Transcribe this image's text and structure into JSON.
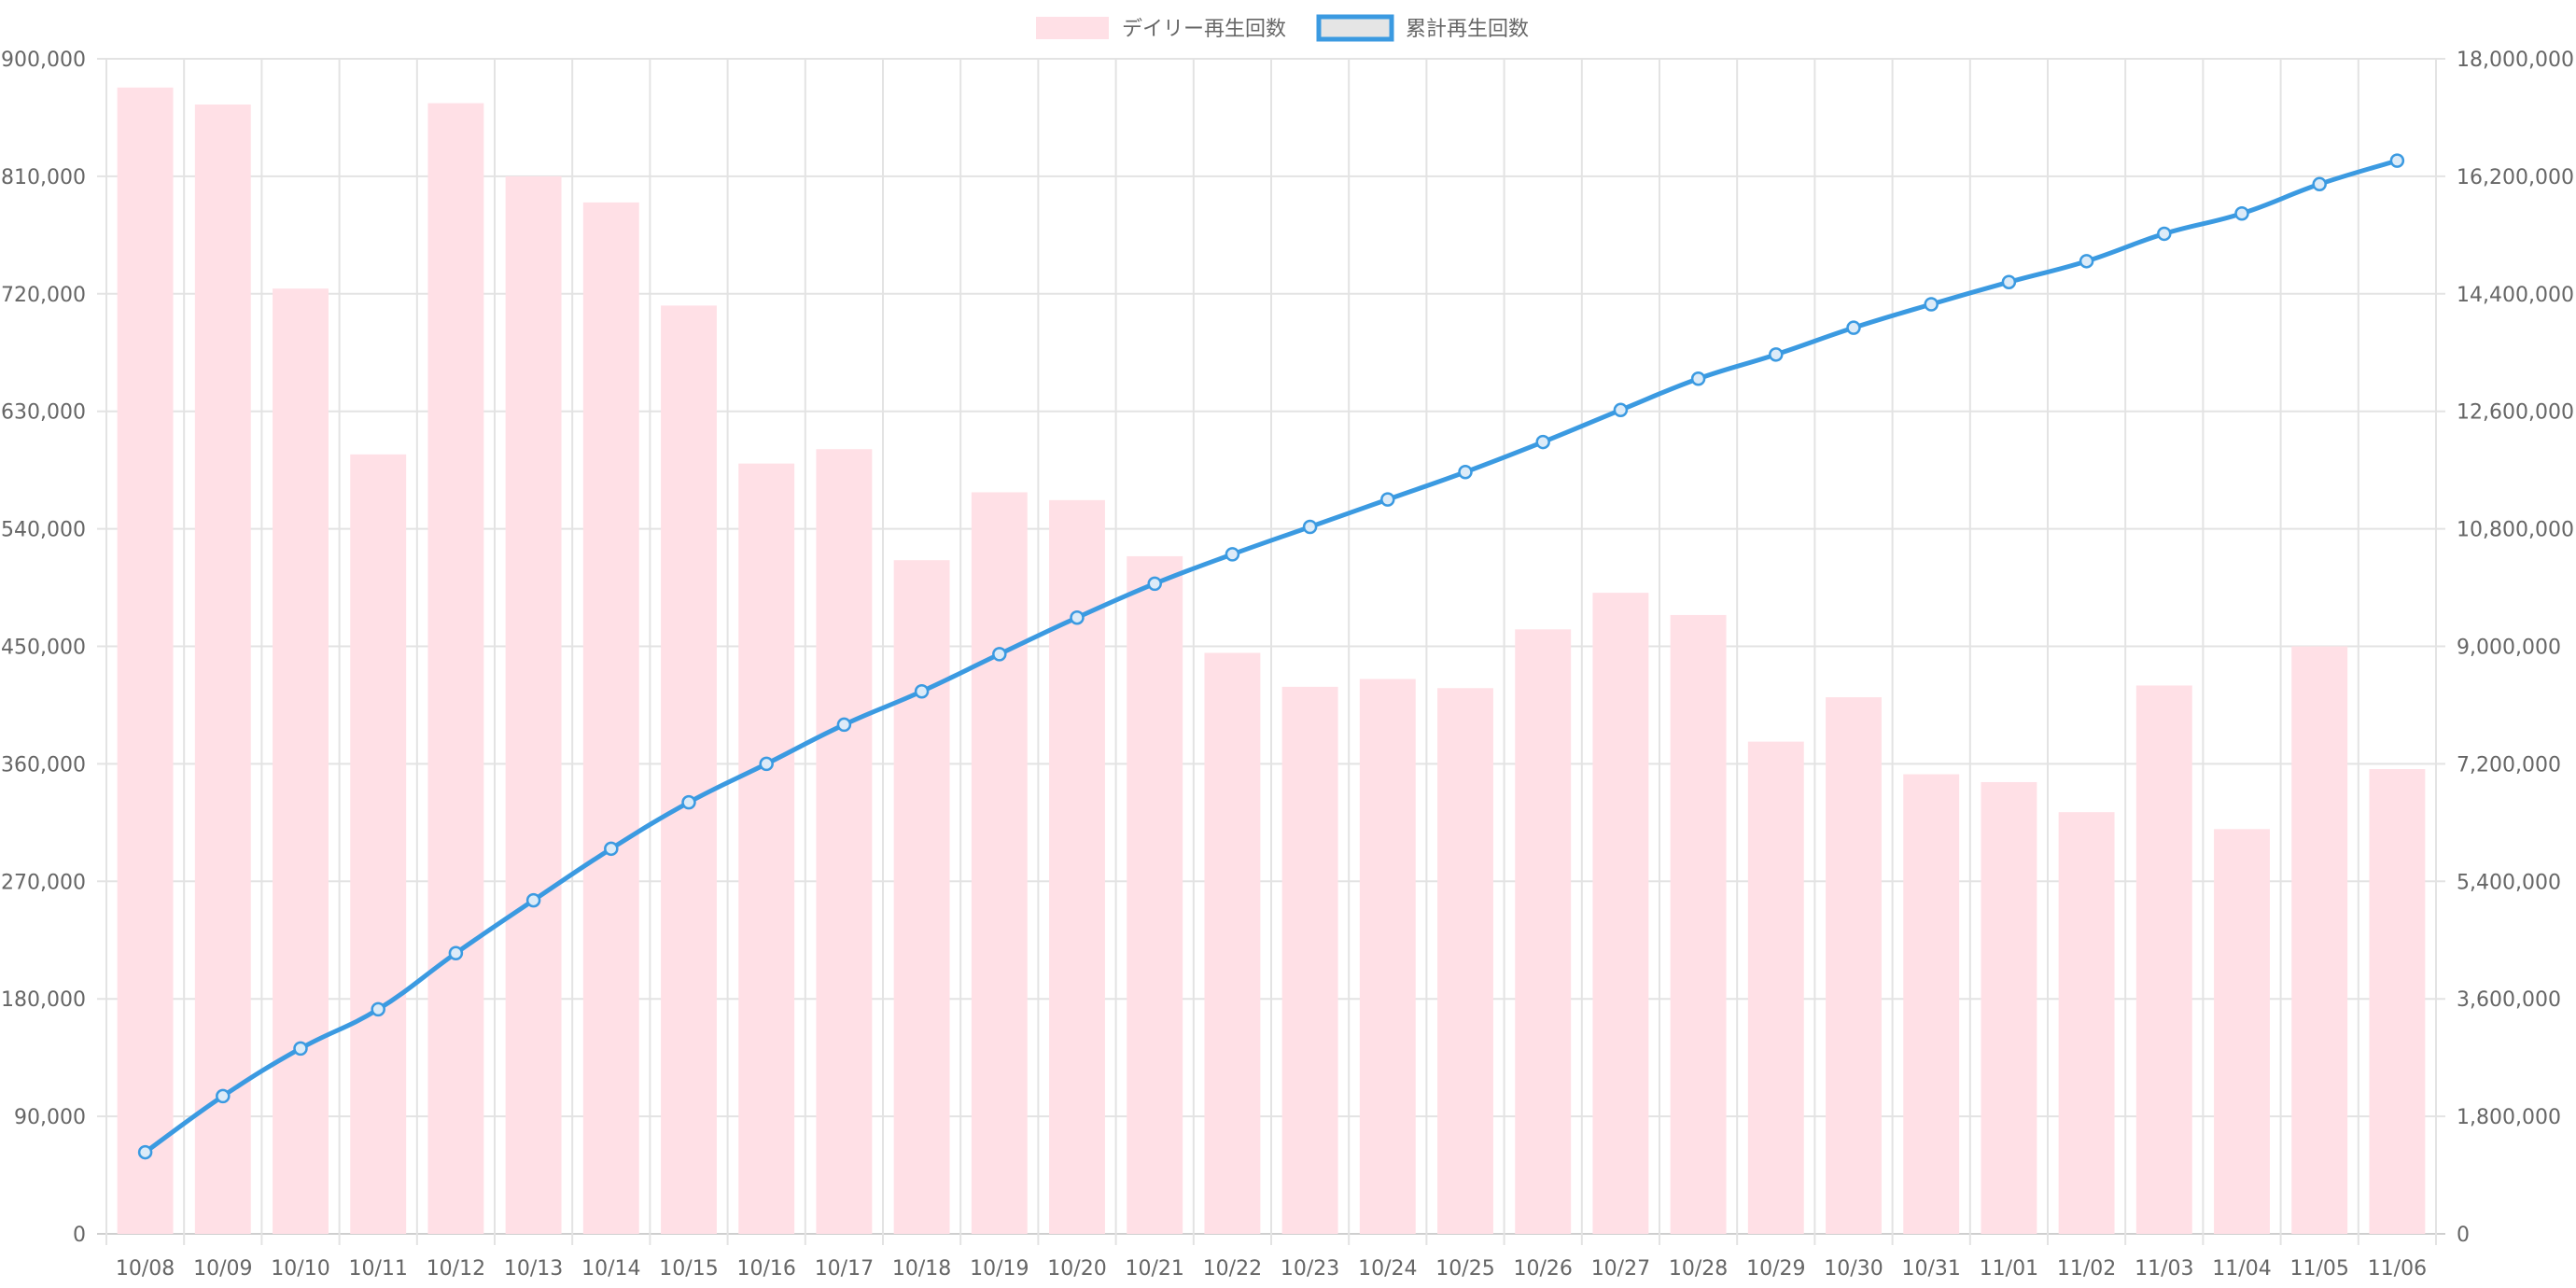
{
  "chart_data": {
    "type": "bar",
    "categories": [
      "10/08",
      "10/09",
      "10/10",
      "10/11",
      "10/12",
      "10/13",
      "10/14",
      "10/15",
      "10/16",
      "10/17",
      "10/18",
      "10/19",
      "10/20",
      "10/21",
      "10/22",
      "10/23",
      "10/24",
      "10/25",
      "10/26",
      "10/27",
      "10/28",
      "10/29",
      "10/30",
      "10/31",
      "11/01",
      "11/02",
      "11/03",
      "11/04",
      "11/05",
      "11/06"
    ],
    "series": [
      {
        "name": "デイリー再生回数",
        "type": "bar",
        "axis": "left",
        "color": "#ffe0e6",
        "values": [
          878000,
          865000,
          724000,
          597000,
          866000,
          810000,
          790000,
          711000,
          590000,
          601000,
          516000,
          568000,
          562000,
          519000,
          445000,
          419000,
          425000,
          418000,
          463000,
          491000,
          474000,
          377000,
          411000,
          352000,
          346000,
          323000,
          420000,
          310000,
          450000,
          356000
        ]
      },
      {
        "name": "累計再生回数",
        "type": "line",
        "axis": "right",
        "color": "#3b9ae1",
        "values": [
          1250000,
          2110000,
          2840000,
          3440000,
          4300000,
          5110000,
          5900000,
          6610000,
          7200000,
          7800000,
          8310000,
          8880000,
          9440000,
          9960000,
          10410000,
          10830000,
          11250000,
          11670000,
          12130000,
          12620000,
          13100000,
          13470000,
          13880000,
          14240000,
          14580000,
          14900000,
          15320000,
          15630000,
          16080000,
          16440000
        ]
      }
    ],
    "y_left": {
      "min": 0,
      "max": 900000,
      "ticks": [
        "0",
        "90,000",
        "180,000",
        "270,000",
        "360,000",
        "450,000",
        "540,000",
        "630,000",
        "720,000",
        "810,000",
        "900,000"
      ]
    },
    "y_right": {
      "min": 0,
      "max": 18000000,
      "ticks": [
        "0",
        "1,800,000",
        "3,600,000",
        "5,400,000",
        "7,200,000",
        "9,000,000",
        "10,800,000",
        "12,600,000",
        "14,400,000",
        "16,200,000",
        "18,000,000"
      ]
    },
    "grid": true,
    "legend": "top-center",
    "colors": {
      "bar_fill": "#ffe0e6",
      "line": "#3b9ae1",
      "grid": "#e3e3e3",
      "axis_text": "#666666"
    }
  }
}
